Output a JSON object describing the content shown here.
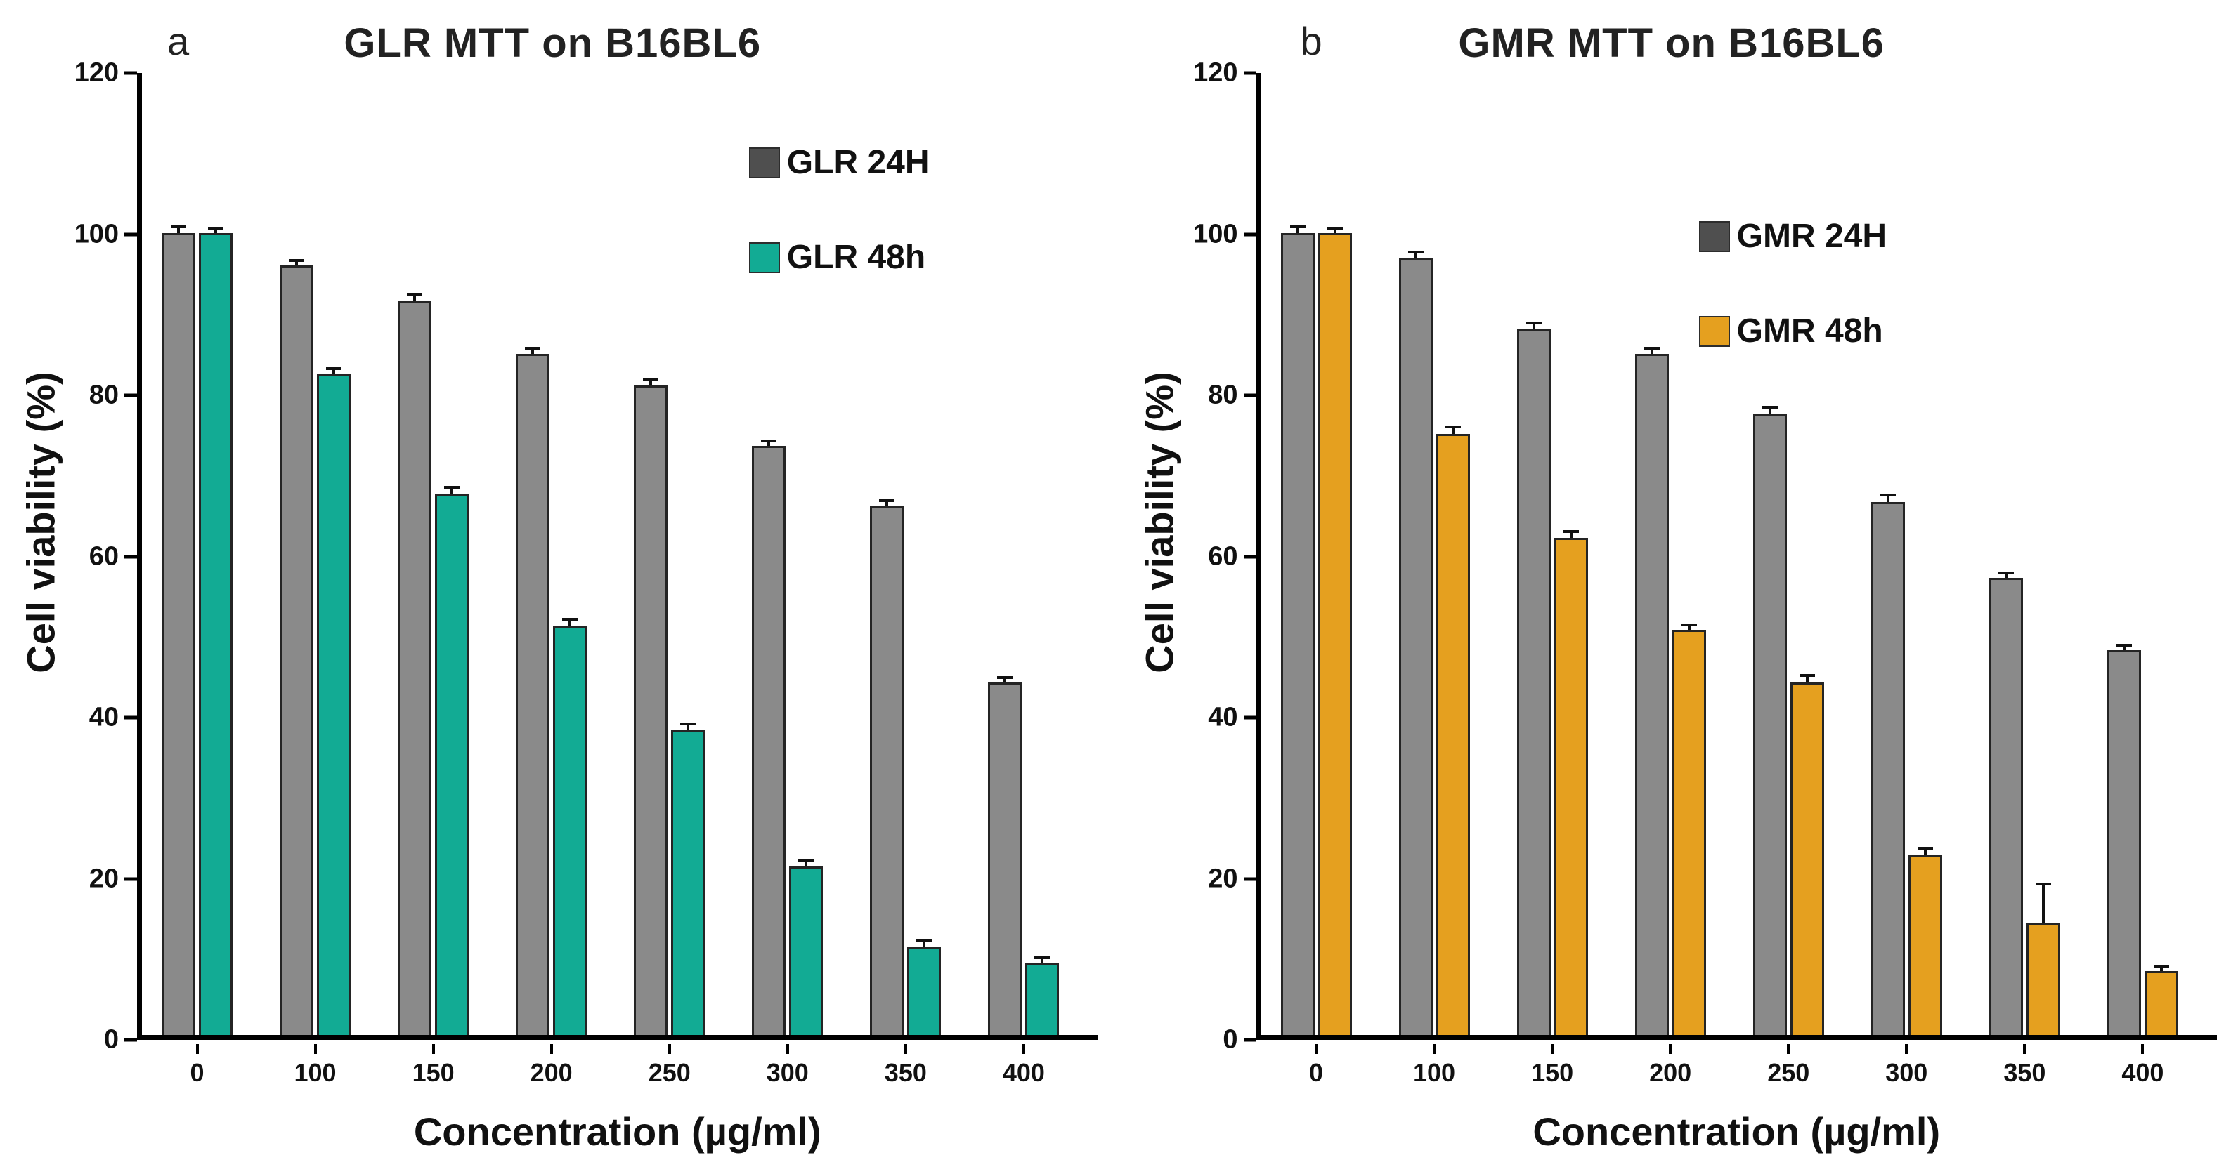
{
  "figure": {
    "background_color": "#ffffff"
  },
  "chart_data": [
    {
      "type": "bar",
      "panel_label": "a",
      "title": "GLR MTT on B16BL6",
      "xlabel": "Concentration (µg/ml)",
      "ylabel": "Cell viability (%)",
      "ylim": [
        0,
        120
      ],
      "yticks": [
        0,
        20,
        40,
        60,
        80,
        100,
        120
      ],
      "grid": false,
      "legend_position": "upper-right",
      "categories": [
        "0",
        "100",
        "150",
        "200",
        "250",
        "300",
        "350",
        "400"
      ],
      "series": [
        {
          "name": "GLR 24H",
          "color": "#8a8a8a",
          "legend_color": "#4f4f4f",
          "values": [
            100,
            96,
            91.5,
            85,
            81,
            73.5,
            66,
            44
          ],
          "errors": [
            1,
            0.8,
            1,
            0.8,
            1,
            0.8,
            0.8,
            0.8
          ]
        },
        {
          "name": "GLR 48h",
          "color": "#12ab94",
          "legend_color": "#12ab94",
          "values": [
            100,
            82.5,
            67.5,
            51,
            38,
            21,
            11,
            9
          ],
          "errors": [
            0.8,
            0.8,
            1,
            1,
            1,
            1,
            1,
            0.8
          ]
        }
      ]
    },
    {
      "type": "bar",
      "panel_label": "b",
      "title": "GMR MTT on B16BL6",
      "xlabel": "Concentration (µg/ml)",
      "ylabel": "Cell viability (%)",
      "ylim": [
        0,
        120
      ],
      "yticks": [
        0,
        20,
        40,
        60,
        80,
        100,
        120
      ],
      "grid": false,
      "legend_position": "upper-right",
      "categories": [
        "0",
        "100",
        "150",
        "200",
        "250",
        "300",
        "350",
        "400"
      ],
      "series": [
        {
          "name": "GMR 24H",
          "color": "#8a8a8a",
          "legend_color": "#4f4f4f",
          "values": [
            100,
            97,
            88,
            85,
            77.5,
            66.5,
            57,
            48
          ],
          "errors": [
            1,
            0.8,
            1,
            0.8,
            1,
            1,
            0.8,
            0.8
          ]
        },
        {
          "name": "GMR 48h",
          "color": "#e5a01f",
          "legend_color": "#e5a01f",
          "values": [
            100,
            75,
            62,
            50.5,
            44,
            22.5,
            14,
            8
          ],
          "errors": [
            0.8,
            1,
            1,
            0.8,
            1,
            1,
            5,
            0.8
          ]
        }
      ]
    }
  ]
}
